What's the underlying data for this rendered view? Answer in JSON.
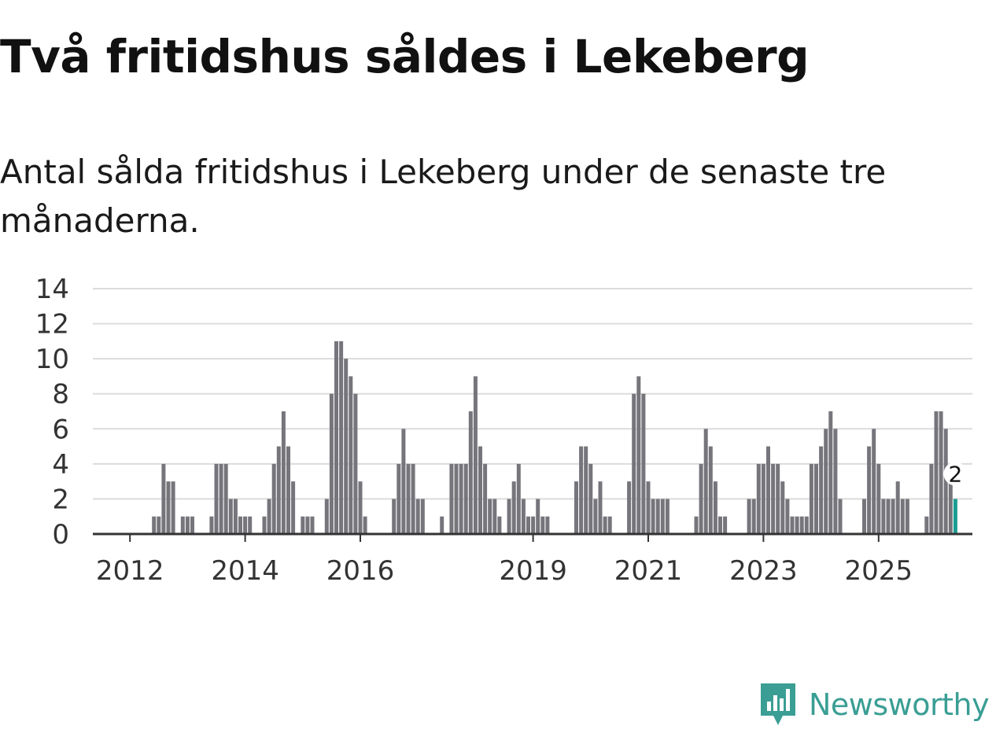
{
  "title": "Två fritidshus såldes i Lekeberg",
  "subtitle": "Antal sålda fritidshus i Lekeberg under de senaste tre månaderna.",
  "brand": {
    "name": "Newsworthy",
    "color": "#3a9e94"
  },
  "colors": {
    "bar": "#75757b",
    "highlight": "#1a9c93",
    "grid": "#dcdcdc",
    "axis": "#333333",
    "text": "#333333"
  },
  "chart_data": {
    "type": "bar",
    "title": "Två fritidshus såldes i Lekeberg",
    "xlabel": "",
    "ylabel": "",
    "ylim": [
      0,
      14
    ],
    "yticks": [
      0,
      2,
      4,
      6,
      8,
      10,
      12,
      14
    ],
    "x_start": "2011-06",
    "xticks": [
      {
        "label": "2012",
        "index": 7
      },
      {
        "label": "2014",
        "index": 31
      },
      {
        "label": "2016",
        "index": 55
      },
      {
        "label": "2019",
        "index": 91
      },
      {
        "label": "2021",
        "index": 115
      },
      {
        "label": "2023",
        "index": 139
      },
      {
        "label": "2025",
        "index": 163
      }
    ],
    "values": [
      0,
      0,
      0,
      0,
      0,
      0,
      0,
      0,
      0,
      0,
      0,
      0,
      1,
      1,
      4,
      3,
      3,
      0,
      1,
      1,
      1,
      0,
      0,
      0,
      1,
      4,
      4,
      4,
      2,
      2,
      1,
      1,
      1,
      0,
      0,
      1,
      2,
      4,
      5,
      7,
      5,
      3,
      0,
      1,
      1,
      1,
      0,
      0,
      2,
      8,
      11,
      11,
      10,
      9,
      8,
      3,
      1,
      0,
      0,
      0,
      0,
      0,
      2,
      4,
      6,
      4,
      4,
      2,
      2,
      0,
      0,
      0,
      1,
      0,
      4,
      4,
      4,
      4,
      7,
      9,
      5,
      4,
      2,
      2,
      1,
      0,
      2,
      3,
      4,
      2,
      1,
      1,
      2,
      1,
      1,
      0,
      0,
      0,
      0,
      0,
      3,
      5,
      5,
      4,
      2,
      3,
      1,
      1,
      0,
      0,
      0,
      3,
      8,
      9,
      8,
      3,
      2,
      2,
      2,
      2,
      0,
      0,
      0,
      0,
      0,
      1,
      4,
      6,
      5,
      3,
      1,
      1,
      0,
      0,
      0,
      0,
      2,
      2,
      4,
      4,
      5,
      4,
      4,
      3,
      2,
      1,
      1,
      1,
      1,
      4,
      4,
      5,
      6,
      7,
      6,
      2,
      0,
      0,
      0,
      0,
      2,
      5,
      6,
      4,
      2,
      2,
      2,
      3,
      2,
      2,
      0,
      0,
      0,
      1,
      4,
      7,
      7,
      6,
      3,
      2
    ],
    "highlight_index": 179,
    "annotation": {
      "index": 179,
      "label": "2"
    }
  }
}
